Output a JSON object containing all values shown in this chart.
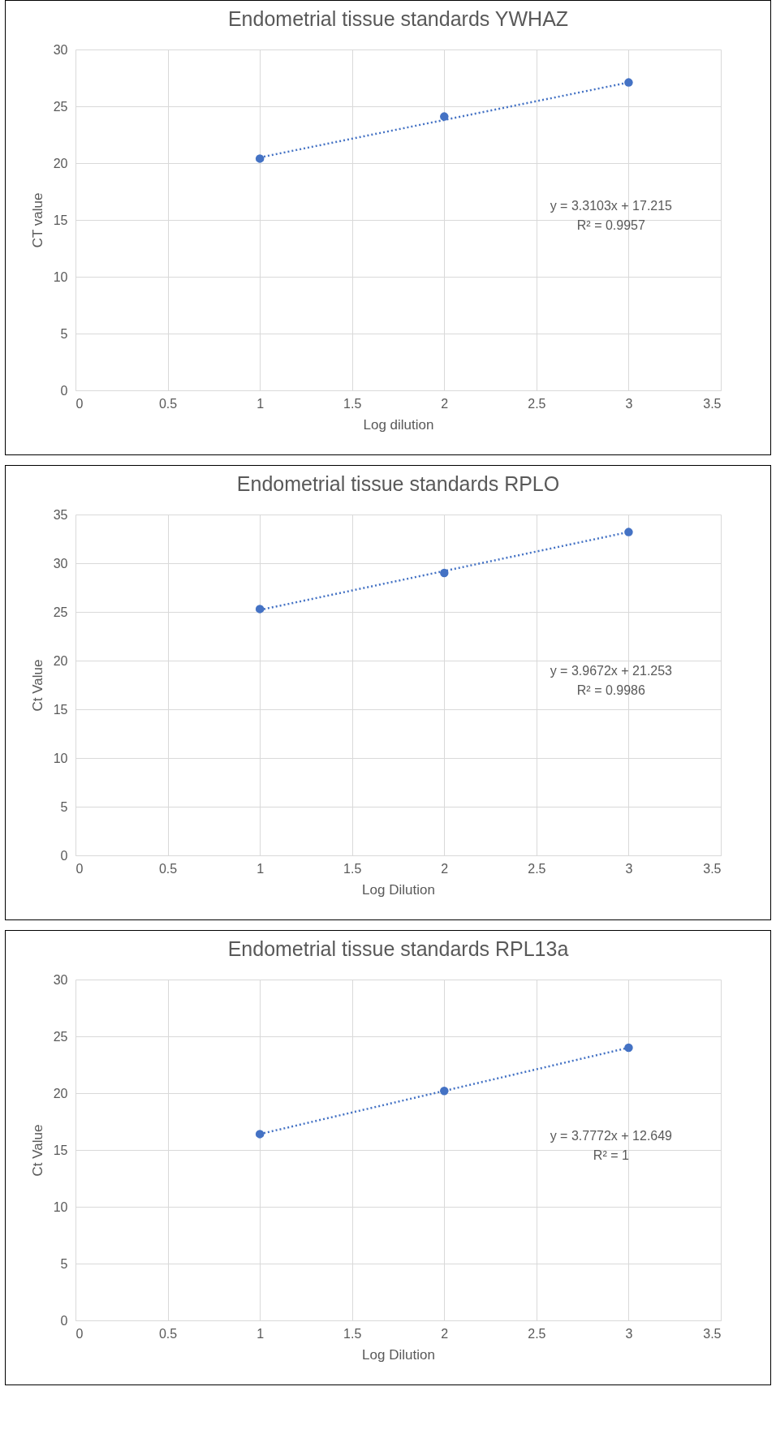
{
  "chart_data": [
    {
      "type": "scatter",
      "title": "Endometrial tissue standards YWHAZ",
      "xlabel": "Log dilution",
      "ylabel": "CT value",
      "xlim": [
        0,
        3.5
      ],
      "xticks": [
        0,
        0.5,
        1,
        1.5,
        2,
        2.5,
        3,
        3.5
      ],
      "ylim": [
        0,
        30
      ],
      "yticks": [
        0,
        5,
        10,
        15,
        20,
        25,
        30
      ],
      "grid": true,
      "annotations": [
        "y = 3.3103x + 17.215",
        "R² = 0.9957"
      ],
      "series": [
        {
          "type": "scatter",
          "marker": "circle",
          "color": "#4472c4",
          "x": [
            1,
            2,
            3
          ],
          "values": [
            20.4,
            24.1,
            27.1
          ]
        },
        {
          "type": "line",
          "line_style": "dotted",
          "color": "#4472c4",
          "x": [
            1,
            3
          ],
          "values": [
            20.5,
            27.1
          ]
        }
      ]
    },
    {
      "type": "scatter",
      "title": "Endometrial tissue standards RPLO",
      "xlabel": "Log Dilution",
      "ylabel": "Ct Value",
      "xlim": [
        0,
        3.5
      ],
      "xticks": [
        0,
        0.5,
        1,
        1.5,
        2,
        2.5,
        3,
        3.5
      ],
      "ylim": [
        0,
        35
      ],
      "yticks": [
        0,
        5,
        10,
        15,
        20,
        25,
        30,
        35
      ],
      "grid": true,
      "annotations": [
        "y = 3.9672x + 21.253",
        "R² = 0.9986"
      ],
      "series": [
        {
          "type": "scatter",
          "marker": "circle",
          "color": "#4472c4",
          "x": [
            1,
            2,
            3
          ],
          "values": [
            25.3,
            29.0,
            33.2
          ]
        },
        {
          "type": "line",
          "line_style": "dotted",
          "color": "#4472c4",
          "x": [
            1,
            3
          ],
          "values": [
            25.2,
            33.2
          ]
        }
      ]
    },
    {
      "type": "scatter",
      "title": "Endometrial tissue standards RPL13a",
      "xlabel": "Log Dilution",
      "ylabel": "Ct Value",
      "xlim": [
        0,
        3.5
      ],
      "xticks": [
        0,
        0.5,
        1,
        1.5,
        2,
        2.5,
        3,
        3.5
      ],
      "ylim": [
        0,
        30
      ],
      "yticks": [
        0,
        5,
        10,
        15,
        20,
        25,
        30
      ],
      "grid": true,
      "annotations": [
        "y = 3.7772x + 12.649",
        "R² = 1"
      ],
      "series": [
        {
          "type": "scatter",
          "marker": "circle",
          "color": "#4472c4",
          "x": [
            1,
            2,
            3
          ],
          "values": [
            16.4,
            20.2,
            24.0
          ]
        },
        {
          "type": "line",
          "line_style": "dotted",
          "color": "#4472c4",
          "x": [
            1,
            3
          ],
          "values": [
            16.4,
            24.0
          ]
        }
      ]
    }
  ]
}
